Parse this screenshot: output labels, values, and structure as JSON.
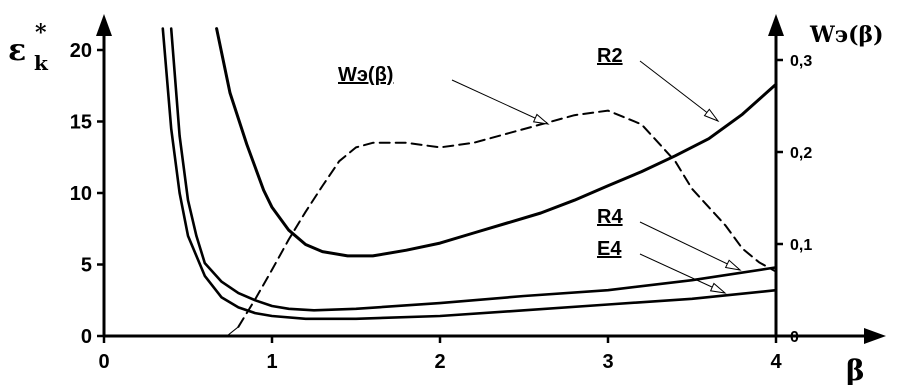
{
  "chart_data": {
    "type": "line",
    "x_axis": {
      "title": "β",
      "range": [
        0,
        4.1
      ],
      "ticks": [
        0,
        1,
        2,
        3,
        4
      ],
      "tick_labels": [
        "0",
        "1",
        "2",
        "3",
        "4"
      ]
    },
    "y_left": {
      "title": "ε",
      "title_sup": "*",
      "title_sub": "k",
      "range": [
        0,
        21.6
      ],
      "ticks": [
        0,
        5,
        10,
        15,
        20
      ],
      "tick_labels": [
        "0",
        "5",
        "10",
        "15",
        "20"
      ]
    },
    "y_right": {
      "title": "Wэ(β)",
      "range": [
        0,
        0.33
      ],
      "ticks": [
        0,
        0.1,
        0.2,
        0.3
      ],
      "tick_labels": [
        "0",
        "0,1",
        "0,2",
        "0,3"
      ]
    },
    "grid": false,
    "legend": "none",
    "series": [
      {
        "name": "R2",
        "axis": "left",
        "style": "solid",
        "points": [
          [
            0.67,
            21.5
          ],
          [
            0.75,
            17.0
          ],
          [
            0.85,
            13.4
          ],
          [
            0.95,
            10.2
          ],
          [
            1.0,
            9.0
          ],
          [
            1.1,
            7.4
          ],
          [
            1.2,
            6.4
          ],
          [
            1.3,
            5.9
          ],
          [
            1.45,
            5.6
          ],
          [
            1.6,
            5.6
          ],
          [
            1.8,
            6.0
          ],
          [
            2.0,
            6.5
          ],
          [
            2.2,
            7.2
          ],
          [
            2.4,
            7.9
          ],
          [
            2.6,
            8.6
          ],
          [
            2.8,
            9.5
          ],
          [
            3.0,
            10.5
          ],
          [
            3.2,
            11.5
          ],
          [
            3.4,
            12.6
          ],
          [
            3.6,
            13.8
          ],
          [
            3.8,
            15.5
          ],
          [
            4.0,
            17.6
          ]
        ]
      },
      {
        "name": "R4",
        "axis": "left",
        "style": "solid",
        "points": [
          [
            0.4,
            21.5
          ],
          [
            0.45,
            14.0
          ],
          [
            0.5,
            9.5
          ],
          [
            0.55,
            7.0
          ],
          [
            0.6,
            5.1
          ],
          [
            0.7,
            3.8
          ],
          [
            0.8,
            3.0
          ],
          [
            0.9,
            2.5
          ],
          [
            1.0,
            2.1
          ],
          [
            1.1,
            1.9
          ],
          [
            1.25,
            1.8
          ],
          [
            1.5,
            1.9
          ],
          [
            2.0,
            2.3
          ],
          [
            2.5,
            2.8
          ],
          [
            3.0,
            3.2
          ],
          [
            3.5,
            3.9
          ],
          [
            4.0,
            4.8
          ]
        ]
      },
      {
        "name": "E4",
        "axis": "left",
        "style": "solid",
        "points": [
          [
            0.35,
            21.5
          ],
          [
            0.4,
            14.5
          ],
          [
            0.45,
            10.0
          ],
          [
            0.5,
            7.0
          ],
          [
            0.6,
            4.2
          ],
          [
            0.7,
            2.7
          ],
          [
            0.8,
            2.0
          ],
          [
            0.9,
            1.6
          ],
          [
            1.0,
            1.4
          ],
          [
            1.2,
            1.2
          ],
          [
            1.5,
            1.2
          ],
          [
            2.0,
            1.4
          ],
          [
            2.5,
            1.8
          ],
          [
            3.0,
            2.2
          ],
          [
            3.5,
            2.6
          ],
          [
            4.0,
            3.2
          ]
        ]
      },
      {
        "name": "Wэ(β)",
        "axis": "right",
        "style": "dashed",
        "points": [
          [
            0.8,
            0.01
          ],
          [
            0.9,
            0.04
          ],
          [
            1.0,
            0.072
          ],
          [
            1.1,
            0.105
          ],
          [
            1.2,
            0.135
          ],
          [
            1.3,
            0.163
          ],
          [
            1.4,
            0.19
          ],
          [
            1.5,
            0.205
          ],
          [
            1.6,
            0.21
          ],
          [
            1.8,
            0.21
          ],
          [
            2.0,
            0.205
          ],
          [
            2.2,
            0.21
          ],
          [
            2.4,
            0.22
          ],
          [
            2.6,
            0.23
          ],
          [
            2.8,
            0.24
          ],
          [
            3.0,
            0.245
          ],
          [
            3.2,
            0.23
          ],
          [
            3.4,
            0.19
          ],
          [
            3.5,
            0.16
          ],
          [
            3.6,
            0.14
          ],
          [
            3.7,
            0.12
          ],
          [
            3.8,
            0.095
          ],
          [
            3.9,
            0.08
          ],
          [
            4.0,
            0.07
          ]
        ]
      }
    ],
    "annotations": [
      {
        "text": "Wэ(β)",
        "target_series": "Wэ(β)"
      },
      {
        "text": "R2",
        "target_series": "R2"
      },
      {
        "text": "R4",
        "target_series": "R4"
      },
      {
        "text": "E4",
        "target_series": "E4"
      }
    ]
  }
}
